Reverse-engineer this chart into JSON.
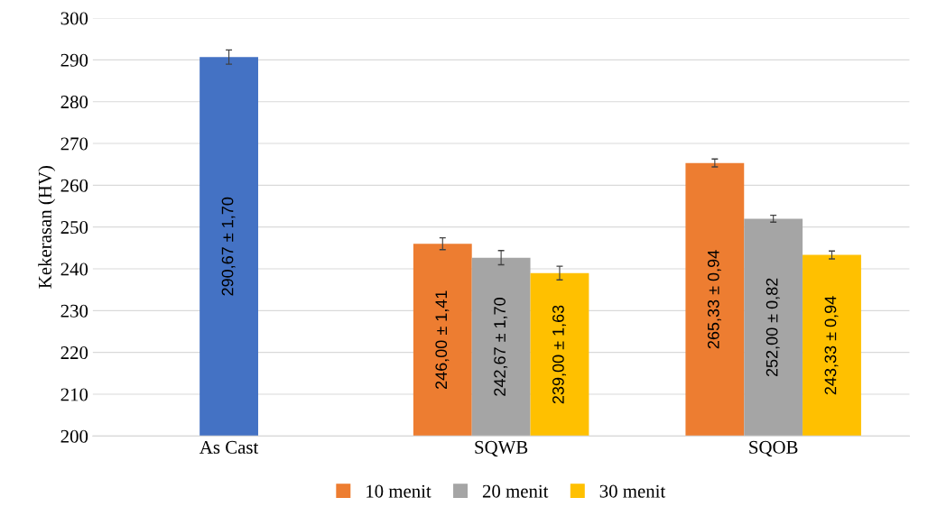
{
  "chart_data": {
    "type": "bar",
    "ylabel": "Kekerasan (HV)",
    "categories": [
      "As Cast",
      "SQWB",
      "SQOB"
    ],
    "series": [
      {
        "color": "#4472c4",
        "values": [
          290.67,
          null,
          null
        ],
        "errors": [
          1.7,
          null,
          null
        ],
        "value_labels": [
          "290,67 ± 1,70",
          null,
          null
        ]
      },
      {
        "name": "10 menit",
        "color": "#ed7d31",
        "values": [
          null,
          246.0,
          265.33
        ],
        "errors": [
          null,
          1.41,
          0.94
        ],
        "value_labels": [
          null,
          "246,00 ± 1,41",
          "265,33 ± 0,94"
        ]
      },
      {
        "name": "20 menit",
        "color": "#a5a5a5",
        "values": [
          null,
          242.67,
          252.0
        ],
        "errors": [
          null,
          1.7,
          0.82
        ],
        "value_labels": [
          null,
          "242,67 ± 1,70",
          "252,00 ± 0,82"
        ]
      },
      {
        "name": "30 menit",
        "color": "#ffc000",
        "values": [
          null,
          239.0,
          243.33
        ],
        "errors": [
          null,
          1.63,
          0.94
        ],
        "value_labels": [
          null,
          "239,00 ± 1,63",
          "243,33 ± 0,94"
        ]
      }
    ],
    "ylim": [
      200,
      300
    ],
    "yticks": [
      200,
      210,
      220,
      230,
      240,
      250,
      260,
      270,
      280,
      290,
      300
    ],
    "grid": "y",
    "legend": "bottom"
  }
}
